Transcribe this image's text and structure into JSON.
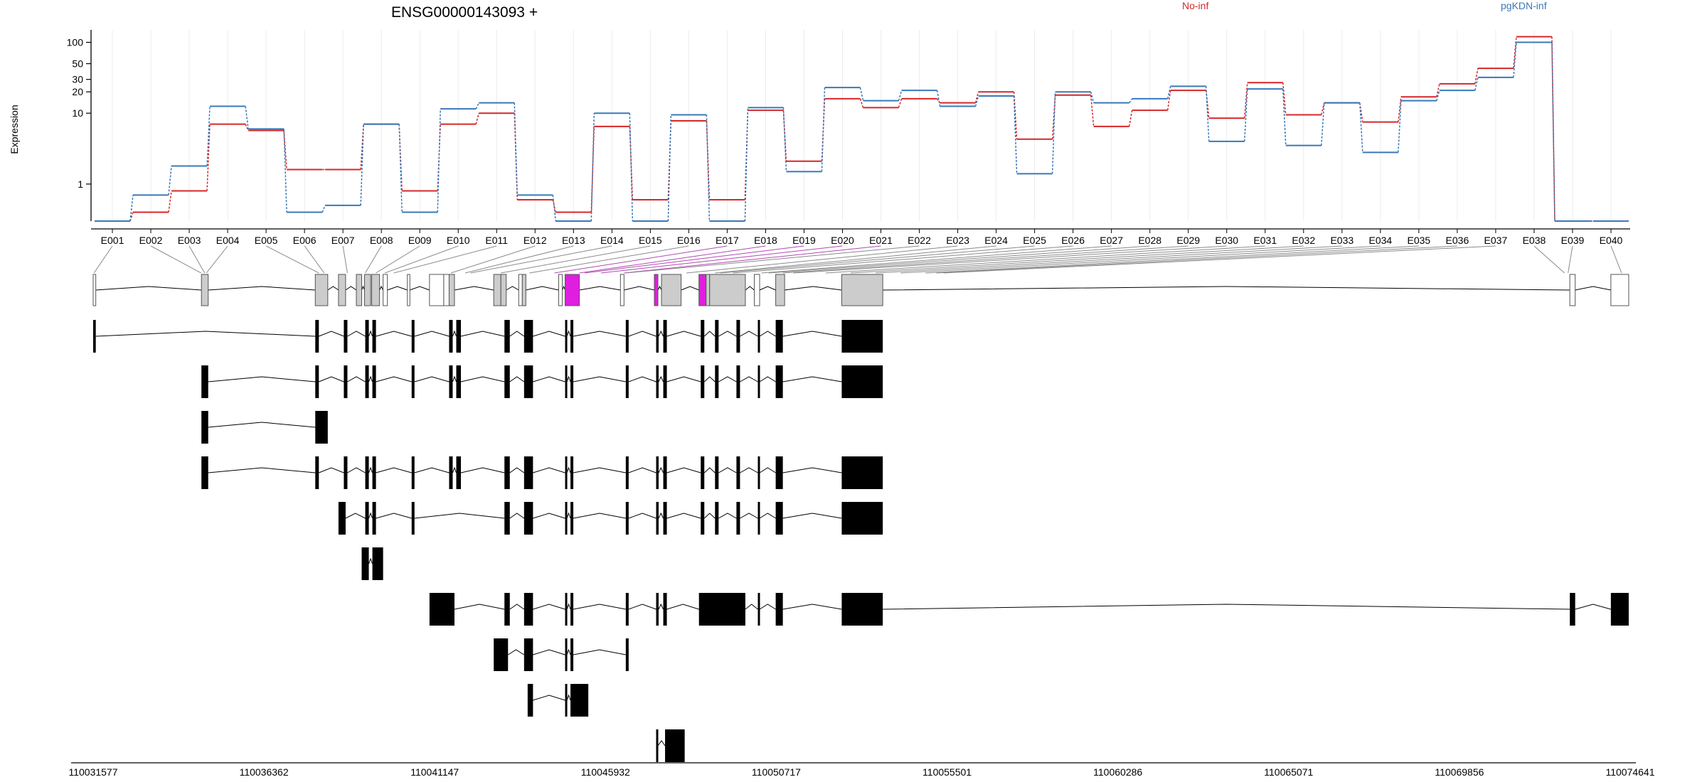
{
  "chart_data": {
    "type": "line",
    "title": "ENSG00000143093 +",
    "ylabel": "Expression",
    "yscale": "log",
    "ylim": [
      0.3,
      150
    ],
    "yticks": [
      "1",
      "10",
      "20",
      "30",
      "50",
      "100"
    ],
    "grid": "vertical",
    "legend_placement": "top-right",
    "categories": [
      "E001",
      "E002",
      "E003",
      "E004",
      "E005",
      "E006",
      "E007",
      "E008",
      "E009",
      "E010",
      "E011",
      "E012",
      "E013",
      "E014",
      "E015",
      "E016",
      "E017",
      "E018",
      "E019",
      "E020",
      "E021",
      "E022",
      "E023",
      "E024",
      "E025",
      "E026",
      "E027",
      "E028",
      "E029",
      "E030",
      "E031",
      "E032",
      "E033",
      "E034",
      "E035",
      "E036",
      "E037",
      "E038",
      "E039",
      "E040"
    ],
    "series": [
      {
        "name": "No-inf",
        "color": "#d62728",
        "values": [
          0.3,
          0.4,
          0.8,
          7,
          5.7,
          1.6,
          1.6,
          7,
          0.8,
          7,
          10,
          0.6,
          0.4,
          6.5,
          0.6,
          7.8,
          0.6,
          11,
          2.1,
          16,
          12,
          16,
          14,
          20,
          4.3,
          18,
          6.5,
          11,
          21,
          8.5,
          27,
          9.5,
          14,
          7.5,
          17,
          26,
          43,
          120,
          0.3,
          0.3
        ]
      },
      {
        "name": "pgKDN-inf",
        "color": "#3a78b8",
        "values": [
          0.3,
          0.7,
          1.8,
          12.5,
          6,
          0.4,
          0.5,
          7,
          0.4,
          11.5,
          14,
          0.7,
          0.3,
          10,
          0.3,
          9.5,
          0.3,
          12,
          1.5,
          23,
          15,
          21,
          12.5,
          17.5,
          1.4,
          20,
          14,
          16,
          24,
          4,
          22,
          3.5,
          14,
          2.8,
          15,
          21,
          32,
          100,
          0.3,
          0.3
        ]
      }
    ],
    "exon_links": [
      {
        "exon": "E001",
        "pos": 110031600
      },
      {
        "exon": "E002",
        "pos": 110034600
      },
      {
        "exon": "E003",
        "pos": 110034700
      },
      {
        "exon": "E004",
        "pos": 110034750
      },
      {
        "exon": "E005",
        "pos": 110037900
      },
      {
        "exon": "E006",
        "pos": 110038050
      },
      {
        "exon": "E007",
        "pos": 110038700
      },
      {
        "exon": "E008",
        "pos": 110039200
      },
      {
        "exon": "E009",
        "pos": 110039500
      },
      {
        "exon": "E010",
        "pos": 110039750
      },
      {
        "exon": "E011",
        "pos": 110040000
      },
      {
        "exon": "E012",
        "pos": 110041600
      },
      {
        "exon": "E013",
        "pos": 110042000
      },
      {
        "exon": "E014",
        "pos": 110042150
      },
      {
        "exon": "E015",
        "pos": 110043000
      },
      {
        "exon": "E016",
        "pos": 110043800
      },
      {
        "exon": "E017",
        "pos": 110044500
      },
      {
        "exon": "E018",
        "pos": 110045200
      },
      {
        "exon": "E019",
        "pos": 110045350
      },
      {
        "exon": "E020",
        "pos": 110045800
      },
      {
        "exon": "E021",
        "pos": 110046450
      },
      {
        "exon": "E022",
        "pos": 110046500
      },
      {
        "exon": "E023",
        "pos": 110048200
      },
      {
        "exon": "E024",
        "pos": 110049000
      },
      {
        "exon": "E025",
        "pos": 110049150
      },
      {
        "exon": "E026",
        "pos": 110049500
      },
      {
        "exon": "E027",
        "pos": 110050300
      },
      {
        "exon": "E028",
        "pos": 110050500
      },
      {
        "exon": "E029",
        "pos": 110050900
      },
      {
        "exon": "E030",
        "pos": 110051200
      },
      {
        "exon": "E031",
        "pos": 110052100
      },
      {
        "exon": "E032",
        "pos": 110052800
      },
      {
        "exon": "E033",
        "pos": 110053500
      },
      {
        "exon": "E034",
        "pos": 110054200
      },
      {
        "exon": "E035",
        "pos": 110054900
      },
      {
        "exon": "E036",
        "pos": 110055200
      },
      {
        "exon": "E037",
        "pos": 110055400
      },
      {
        "exon": "E038",
        "pos": 110072800
      },
      {
        "exon": "E039",
        "pos": 110072900
      },
      {
        "exon": "E040",
        "pos": 110074400
      }
    ],
    "gene_model": {
      "exons": [
        {
          "s": 110031577,
          "e": 110031650,
          "fill": "#ffffff"
        },
        {
          "s": 110034610,
          "e": 110034800,
          "fill": "#cccccc"
        },
        {
          "s": 110037800,
          "e": 110038150,
          "fill": "#cccccc"
        },
        {
          "s": 110038450,
          "e": 110038650,
          "fill": "#cccccc"
        },
        {
          "s": 110038950,
          "e": 110039100,
          "fill": "#cccccc"
        },
        {
          "s": 110039180,
          "e": 110039350,
          "fill": "#cccccc"
        },
        {
          "s": 110039380,
          "e": 110039600,
          "fill": "#cccccc"
        },
        {
          "s": 110039700,
          "e": 110039820,
          "fill": "#ffffff"
        },
        {
          "s": 110040380,
          "e": 110040450,
          "fill": "#ffffff"
        },
        {
          "s": 110041000,
          "e": 110041400,
          "fill": "#ffffff"
        },
        {
          "s": 110041400,
          "e": 110041550,
          "fill": "#ffffff"
        },
        {
          "s": 110041550,
          "e": 110041700,
          "fill": "#cccccc"
        },
        {
          "s": 110042800,
          "e": 110043000,
          "fill": "#cccccc"
        },
        {
          "s": 110043000,
          "e": 110043150,
          "fill": "#cccccc"
        },
        {
          "s": 110043500,
          "e": 110043600,
          "fill": "#ffffff"
        },
        {
          "s": 110043600,
          "e": 110043700,
          "fill": "#cccccc"
        },
        {
          "s": 110044620,
          "e": 110044720,
          "fill": "#ffffff"
        },
        {
          "s": 110044800,
          "e": 110045200,
          "fill": "#e01ee0"
        },
        {
          "s": 110046350,
          "e": 110046450,
          "fill": "#ffffff"
        },
        {
          "s": 110047300,
          "e": 110047400,
          "fill": "#e01ee0"
        },
        {
          "s": 110047500,
          "e": 110048050,
          "fill": "#cccccc"
        },
        {
          "s": 110048550,
          "e": 110048750,
          "fill": "#e01ee0"
        },
        {
          "s": 110048750,
          "e": 110048850,
          "fill": "#cccccc"
        },
        {
          "s": 110048850,
          "e": 110049850,
          "fill": "#cccccc"
        },
        {
          "s": 110050100,
          "e": 110050250,
          "fill": "#ffffff"
        },
        {
          "s": 110050700,
          "e": 110050950,
          "fill": "#cccccc"
        },
        {
          "s": 110052550,
          "e": 110053700,
          "fill": "#cccccc"
        },
        {
          "s": 110072950,
          "e": 110073100,
          "fill": "#ffffff"
        },
        {
          "s": 110074100,
          "e": 110074600,
          "fill": "#ffffff"
        }
      ]
    },
    "transcripts": [
      {
        "exons": [
          [
            110031577,
            110031650
          ],
          [
            110037800,
            110037900
          ],
          [
            110038600,
            110038700
          ],
          [
            110039200,
            110039300
          ],
          [
            110039400,
            110039500
          ],
          [
            110040500,
            110040580
          ],
          [
            110041550,
            110041650
          ],
          [
            110041750,
            110041880
          ],
          [
            110043100,
            110043250
          ],
          [
            110043650,
            110043900
          ],
          [
            110044800,
            110044850
          ],
          [
            110044950,
            110045030
          ],
          [
            110046500,
            110046580
          ],
          [
            110047350,
            110047420
          ],
          [
            110047550,
            110047650
          ],
          [
            110048600,
            110048700
          ],
          [
            110049000,
            110049100
          ],
          [
            110049600,
            110049700
          ],
          [
            110050200,
            110050250
          ],
          [
            110050700,
            110050900
          ],
          [
            110052550,
            110053700
          ]
        ]
      },
      {
        "exons": [
          [
            110034610,
            110034800
          ],
          [
            110037800,
            110037900
          ],
          [
            110038600,
            110038700
          ],
          [
            110039200,
            110039300
          ],
          [
            110039400,
            110039500
          ],
          [
            110040500,
            110040580
          ],
          [
            110041550,
            110041650
          ],
          [
            110041750,
            110041880
          ],
          [
            110043100,
            110043250
          ],
          [
            110043650,
            110043900
          ],
          [
            110044800,
            110044850
          ],
          [
            110044950,
            110045030
          ],
          [
            110046500,
            110046580
          ],
          [
            110047350,
            110047420
          ],
          [
            110047550,
            110047650
          ],
          [
            110048600,
            110048700
          ],
          [
            110049000,
            110049100
          ],
          [
            110049600,
            110049700
          ],
          [
            110050200,
            110050250
          ],
          [
            110050700,
            110050900
          ],
          [
            110052550,
            110053700
          ]
        ]
      },
      {
        "exons": [
          [
            110034610,
            110034800
          ],
          [
            110037800,
            110038150
          ]
        ]
      },
      {
        "exons": [
          [
            110034610,
            110034800
          ],
          [
            110037800,
            110037900
          ],
          [
            110038600,
            110038700
          ],
          [
            110039200,
            110039300
          ],
          [
            110039400,
            110039500
          ],
          [
            110040500,
            110040580
          ],
          [
            110041550,
            110041650
          ],
          [
            110041750,
            110041880
          ],
          [
            110043100,
            110043250
          ],
          [
            110043650,
            110043900
          ],
          [
            110044800,
            110044850
          ],
          [
            110044950,
            110045030
          ],
          [
            110046500,
            110046580
          ],
          [
            110047350,
            110047420
          ],
          [
            110047550,
            110047650
          ],
          [
            110048600,
            110048700
          ],
          [
            110049000,
            110049100
          ],
          [
            110049600,
            110049700
          ],
          [
            110050200,
            110050250
          ],
          [
            110050700,
            110050900
          ],
          [
            110052550,
            110053700
          ]
        ]
      },
      {
        "exons": [
          [
            110038450,
            110038650
          ],
          [
            110039200,
            110039300
          ],
          [
            110039400,
            110039500
          ],
          [
            110040500,
            110040580
          ],
          [
            110043100,
            110043250
          ],
          [
            110043650,
            110043900
          ],
          [
            110044800,
            110044850
          ],
          [
            110044950,
            110045030
          ],
          [
            110046500,
            110046580
          ],
          [
            110047350,
            110047420
          ],
          [
            110047550,
            110047650
          ],
          [
            110048600,
            110048700
          ],
          [
            110049000,
            110049100
          ],
          [
            110049600,
            110049700
          ],
          [
            110050200,
            110050250
          ],
          [
            110050700,
            110050900
          ],
          [
            110052550,
            110053700
          ]
        ]
      },
      {
        "exons": [
          [
            110039100,
            110039300
          ],
          [
            110039400,
            110039700
          ]
        ]
      },
      {
        "exons": [
          [
            110041000,
            110041700
          ],
          [
            110043100,
            110043250
          ],
          [
            110043650,
            110043900
          ],
          [
            110044800,
            110044850
          ],
          [
            110044950,
            110045030
          ],
          [
            110046500,
            110046580
          ],
          [
            110047350,
            110047420
          ],
          [
            110047550,
            110047650
          ],
          [
            110048550,
            110049850
          ],
          [
            110050200,
            110050250
          ],
          [
            110050700,
            110050900
          ],
          [
            110052550,
            110053700
          ],
          [
            110072950,
            110073100
          ],
          [
            110074100,
            110074600
          ]
        ]
      },
      {
        "exons": [
          [
            110042800,
            110043200
          ],
          [
            110043650,
            110043900
          ],
          [
            110044800,
            110044850
          ],
          [
            110044950,
            110045030
          ],
          [
            110046500,
            110046580
          ]
        ]
      },
      {
        "exons": [
          [
            110043750,
            110043900
          ],
          [
            110044800,
            110044850
          ],
          [
            110044950,
            110045450
          ]
        ]
      },
      {
        "exons": [
          [
            110047350,
            110047400
          ],
          [
            110047600,
            110048150
          ]
        ]
      }
    ],
    "genomic_axis": {
      "range": [
        110031577,
        110074641
      ],
      "ticks": [
        "110031577",
        "110036362",
        "110041147",
        "110045932",
        "110050717",
        "110055501",
        "110060286",
        "110065071",
        "110069856",
        "110074641"
      ]
    }
  }
}
